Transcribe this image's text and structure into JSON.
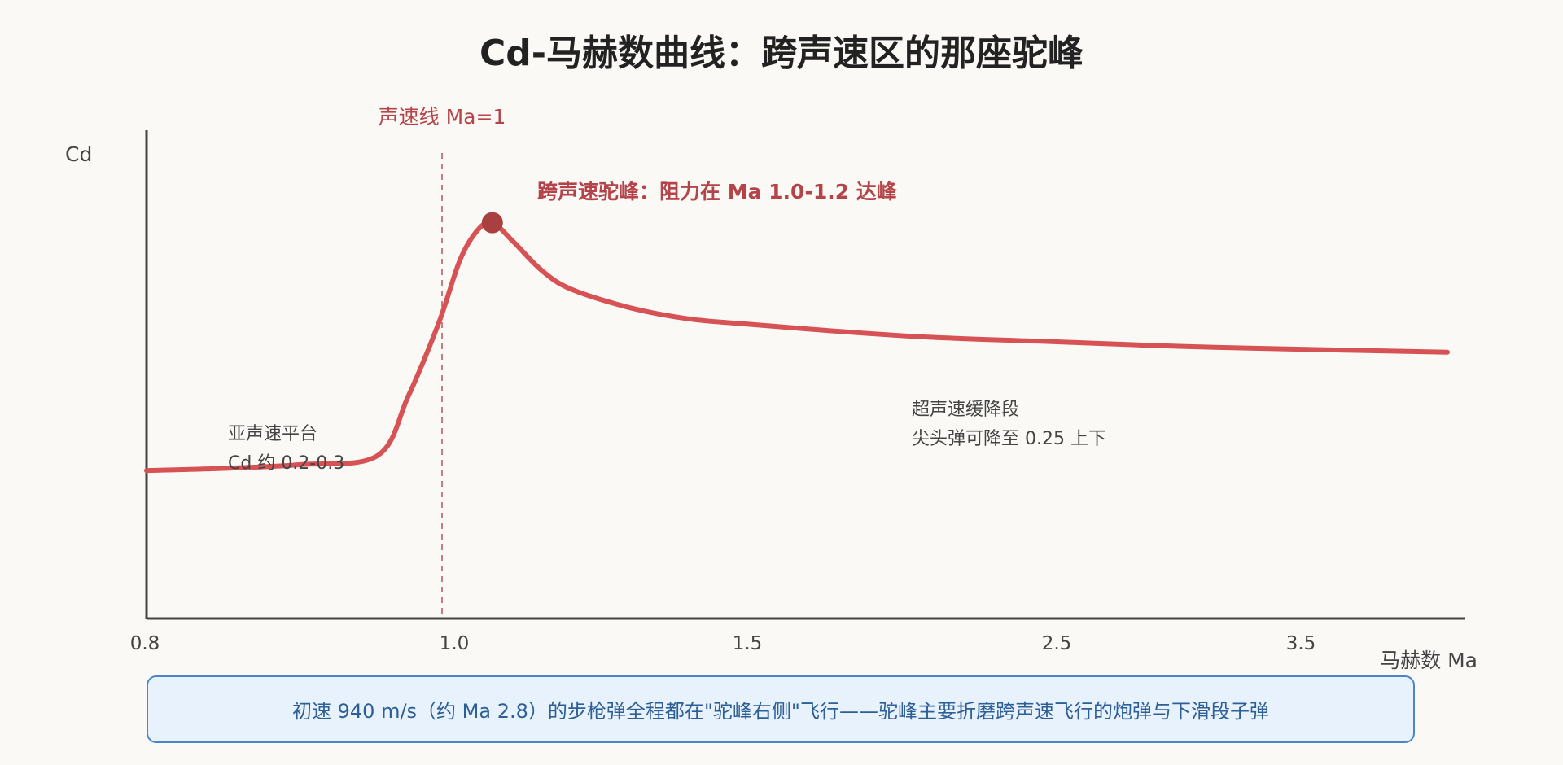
{
  "chart_data": {
    "type": "line",
    "title": "Cd-马赫数曲线：跨声速区的那座驼峰",
    "ylabel": "Cd",
    "xlabel": "马赫数 Ma",
    "x_ticks": [
      {
        "value": 0.8,
        "label": "0.8"
      },
      {
        "value": 1.0,
        "label": "1.0"
      },
      {
        "value": 1.5,
        "label": "1.5"
      },
      {
        "value": 2.5,
        "label": "2.5"
      },
      {
        "value": 3.5,
        "label": "3.5"
      }
    ],
    "y_ticks": [],
    "grid": false,
    "series": [
      {
        "color": "#d65254",
        "points": [
          [
            0.8,
            0.2
          ],
          [
            0.85,
            0.203
          ],
          [
            0.9,
            0.208
          ],
          [
            0.95,
            0.22
          ],
          [
            0.97,
            0.3
          ],
          [
            0.99,
            0.4
          ],
          [
            1.01,
            0.485
          ],
          [
            1.04,
            0.525
          ],
          [
            1.065,
            0.535
          ],
          [
            1.1,
            0.51
          ],
          [
            1.15,
            0.47
          ],
          [
            1.2,
            0.445
          ],
          [
            1.3,
            0.42
          ],
          [
            1.4,
            0.405
          ],
          [
            1.5,
            0.398
          ],
          [
            1.8,
            0.388
          ],
          [
            2.1,
            0.38
          ],
          [
            2.5,
            0.374
          ],
          [
            3.0,
            0.368
          ],
          [
            3.5,
            0.364
          ],
          [
            4.0,
            0.36
          ]
        ]
      }
    ],
    "sonic_line": {
      "x": 1.0,
      "label": "声速线 Ma=1",
      "color": "#b5444a"
    },
    "peak": {
      "x": 1.065,
      "y": 0.535,
      "color": "#a84040"
    },
    "annotations": {
      "peak_label": "跨声速驼峰：阻力在 Ma 1.0-1.2 达峰",
      "subsonic_line1": "亚声速平台",
      "subsonic_line2": "Cd 约 0.2-0.3",
      "supersonic_line1": "超声速缓降段",
      "supersonic_line2": "尖头弹可降至 0.25 上下"
    }
  },
  "footnote": "初速 940 m/s（约 Ma 2.8）的步枪弹全程都在\"驼峰右侧\"飞行——驼峰主要折磨跨声速飞行的炮弹与下滑段子弹"
}
